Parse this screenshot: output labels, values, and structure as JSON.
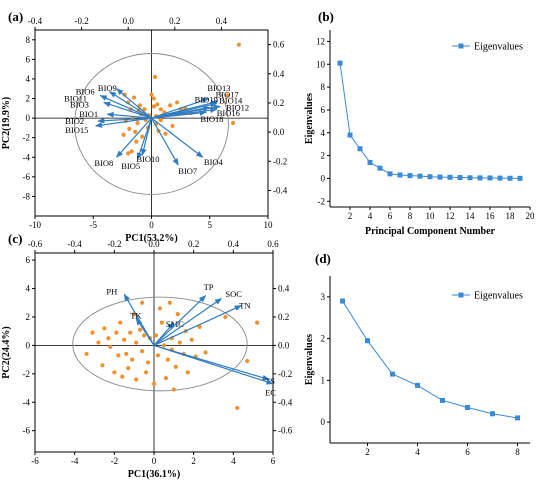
{
  "panel_labels": [
    "(a)",
    "(b)",
    "(c)",
    "(d)"
  ],
  "colors": {
    "point": "#f0912d",
    "vector": "#2f7cc2",
    "line": "#3a8ad6",
    "axis": "#000000",
    "ellipse": "#888888"
  },
  "chart_data": [
    {
      "id": "a",
      "type": "scatter",
      "xlabel": "PC1(53.2%)",
      "ylabel": "PC2(19.9%)",
      "xlim": [
        -10,
        10
      ],
      "ylim": [
        -10,
        9
      ],
      "xticks": [
        "-10",
        "-5",
        "0",
        "5",
        "10"
      ],
      "xticks_v": [
        -10,
        -5,
        0,
        5,
        10
      ],
      "yticks": [
        "-8",
        "-6",
        "-4",
        "-2",
        "0",
        "2",
        "4",
        "6",
        "8"
      ],
      "yticks_v": [
        -8,
        -6,
        -4,
        -2,
        0,
        2,
        4,
        6,
        8
      ],
      "top_lim": [
        -0.4,
        0.6
      ],
      "top_ticks": [
        "-0.4",
        "-0.2",
        "0.0",
        "0.2",
        "0.4"
      ],
      "top_ticks_v": [
        -0.4,
        -0.2,
        0.0,
        0.2,
        0.4
      ],
      "right_lim": [
        -0.575,
        0.7
      ],
      "right_ticks": [
        "-0.4",
        "-0.2",
        "0.0",
        "0.2",
        "0.4",
        "0.6"
      ],
      "right_ticks_v": [
        -0.4,
        -0.2,
        0.0,
        0.2,
        0.4,
        0.6
      ],
      "ellipse": {
        "cx": 0,
        "cy": -0.6,
        "rx": 6.6,
        "ry": 7.2
      },
      "points": [
        [
          -2.3,
          2.4
        ],
        [
          -2.0,
          1.6
        ],
        [
          -1.5,
          2.1
        ],
        [
          -1.8,
          0.9
        ],
        [
          -1.1,
          0.8
        ],
        [
          -0.9,
          0.4
        ],
        [
          -1.6,
          0.0
        ],
        [
          -1.2,
          -0.5
        ],
        [
          -1.9,
          -1.1
        ],
        [
          -2.2,
          -0.3
        ],
        [
          -1.4,
          -1.4
        ],
        [
          -0.8,
          -1.9
        ],
        [
          -1.3,
          -2.4
        ],
        [
          -1.7,
          -3.4
        ],
        [
          -2.0,
          -3.6
        ],
        [
          -2.4,
          -1.7
        ],
        [
          -0.5,
          -0.2
        ],
        [
          -0.2,
          0.3
        ],
        [
          0.2,
          1.2
        ],
        [
          0.5,
          1.4
        ],
        [
          0.8,
          0.9
        ],
        [
          1.1,
          0.6
        ],
        [
          0.4,
          0.2
        ],
        [
          0.8,
          -0.2
        ],
        [
          1.6,
          1.3
        ],
        [
          2.2,
          1.6
        ],
        [
          2.9,
          1.0
        ],
        [
          3.4,
          0.5
        ],
        [
          0.4,
          -0.6
        ],
        [
          0.6,
          -1.3
        ],
        [
          1.2,
          -1.6
        ],
        [
          0.0,
          2.4
        ],
        [
          0.3,
          4.2
        ],
        [
          0.2,
          2.0
        ],
        [
          -0.3,
          -1.0
        ],
        [
          -0.6,
          0.9
        ],
        [
          -1.0,
          1.3
        ],
        [
          2.5,
          0.9
        ],
        [
          1.8,
          -0.8
        ],
        [
          7.5,
          7.5
        ],
        [
          6.5,
          2.3
        ],
        [
          7.0,
          -0.5
        ]
      ],
      "vectors": [
        {
          "label": "BIO6",
          "x": -3.6,
          "y": 2.7,
          "lx": -6.5,
          "ly": 2.7
        },
        {
          "label": "BIO9",
          "x": -3.0,
          "y": 3.0,
          "lx": -4.6,
          "ly": 3.1
        },
        {
          "label": "BIO11",
          "x": -4.4,
          "y": 2.3,
          "lx": -7.5,
          "ly": 2.0
        },
        {
          "label": "BIO3",
          "x": -4.1,
          "y": 1.6,
          "lx": -7.0,
          "ly": 1.4
        },
        {
          "label": "BIO1",
          "x": -3.8,
          "y": 0.4,
          "lx": -6.2,
          "ly": 0.4
        },
        {
          "label": "BIO2",
          "x": -4.6,
          "y": -0.3,
          "lx": -7.4,
          "ly": -0.3
        },
        {
          "label": "BIO15",
          "x": -4.8,
          "y": -0.8,
          "lx": -7.4,
          "ly": -1.2
        },
        {
          "label": "BIO8",
          "x": -3.0,
          "y": -4.0,
          "lx": -4.9,
          "ly": -4.6
        },
        {
          "label": "BIO5",
          "x": -1.2,
          "y": -4.2,
          "lx": -2.6,
          "ly": -4.9
        },
        {
          "label": "BIO10",
          "x": -0.8,
          "y": -3.8,
          "lx": -1.3,
          "ly": -4.2
        },
        {
          "label": "BIO7",
          "x": 2.3,
          "y": -4.8,
          "lx": 2.3,
          "ly": -5.4
        },
        {
          "label": "BIO4",
          "x": 4.4,
          "y": -4.0,
          "lx": 4.5,
          "ly": -4.5
        },
        {
          "label": "BIO13",
          "x": 4.9,
          "y": 2.0,
          "lx": 4.8,
          "ly": 3.1
        },
        {
          "label": "BIO17",
          "x": 5.7,
          "y": 1.7,
          "lx": 5.5,
          "ly": 2.4
        },
        {
          "label": "BIO19",
          "x": 5.0,
          "y": 1.1,
          "lx": 3.7,
          "ly": 1.9
        },
        {
          "label": "BIO14",
          "x": 5.6,
          "y": 1.5,
          "lx": 5.8,
          "ly": 1.8
        },
        {
          "label": "BIO12",
          "x": 5.9,
          "y": 1.2,
          "lx": 6.4,
          "ly": 1.1
        },
        {
          "label": "BIO16",
          "x": 5.6,
          "y": 0.9,
          "lx": 5.6,
          "ly": 0.5
        },
        {
          "label": "BIO18",
          "x": 4.7,
          "y": 0.6,
          "lx": 4.2,
          "ly": -0.1
        }
      ]
    },
    {
      "id": "b",
      "type": "line",
      "xlabel": "Principal Component Number",
      "ylabel": "Eigenvalues",
      "xlim": [
        0,
        20
      ],
      "ylim": [
        -2.5,
        13
      ],
      "xticks": [
        "2",
        "4",
        "6",
        "8",
        "10",
        "12",
        "14",
        "16",
        "18",
        "20"
      ],
      "xticks_v": [
        2,
        4,
        6,
        8,
        10,
        12,
        14,
        16,
        18,
        20
      ],
      "yticks": [
        "-2",
        "0",
        "2",
        "4",
        "6",
        "8",
        "10",
        "12"
      ],
      "yticks_v": [
        -2,
        0,
        2,
        4,
        6,
        8,
        10,
        12
      ],
      "series": [
        {
          "name": "Eigenvalues",
          "x": [
            1,
            2,
            3,
            4,
            5,
            6,
            7,
            8,
            9,
            10,
            11,
            12,
            13,
            14,
            15,
            16,
            17,
            18,
            19
          ],
          "values": [
            10.1,
            3.8,
            2.6,
            1.4,
            0.9,
            0.4,
            0.3,
            0.25,
            0.2,
            0.15,
            0.12,
            0.1,
            0.08,
            0.06,
            0.05,
            0.04,
            0.03,
            0.02,
            0.01
          ]
        }
      ]
    },
    {
      "id": "c",
      "type": "scatter",
      "xlabel": "PC1(36.1%)",
      "ylabel": "PC2(24.4%)",
      "xlim": [
        -6,
        6
      ],
      "ylim": [
        -7.5,
        6.5
      ],
      "xticks": [
        "-6",
        "-4",
        "-2",
        "0",
        "2",
        "4",
        "6"
      ],
      "xticks_v": [
        -6,
        -4,
        -2,
        0,
        2,
        4,
        6
      ],
      "yticks": [
        "-6",
        "-4",
        "-2",
        "0",
        "2",
        "4",
        "6"
      ],
      "yticks_v": [
        -6,
        -4,
        -2,
        0,
        2,
        4,
        6
      ],
      "top_lim": [
        -0.6,
        0.6
      ],
      "top_ticks": [
        "-0.6",
        "-0.4",
        "-0.2",
        "0.0",
        "0.2",
        "0.4",
        "0.6"
      ],
      "top_ticks_v": [
        -0.6,
        -0.4,
        -0.2,
        0.0,
        0.2,
        0.4,
        0.6
      ],
      "right_lim": [
        -0.75,
        0.65
      ],
      "right_ticks": [
        "-0.6",
        "-0.4",
        "-0.2",
        "0.0",
        "0.2",
        "0.4"
      ],
      "right_ticks_v": [
        -0.6,
        -0.4,
        -0.2,
        0.0,
        0.2,
        0.4
      ],
      "ellipse": {
        "cx": 0.3,
        "cy": 0.1,
        "rx": 4.4,
        "ry": 3.3
      },
      "points": [
        [
          -3.1,
          0.9
        ],
        [
          -2.5,
          1.2
        ],
        [
          -2.2,
          -0.1
        ],
        [
          -1.9,
          0.9
        ],
        [
          -1.8,
          -0.7
        ],
        [
          -1.5,
          0.4
        ],
        [
          -1.4,
          -0.6
        ],
        [
          -1.2,
          0.9
        ],
        [
          -1.1,
          -1.0
        ],
        [
          -0.9,
          0.2
        ],
        [
          -0.7,
          1.1
        ],
        [
          -0.6,
          -0.4
        ],
        [
          -0.5,
          0.7
        ],
        [
          -0.3,
          -1.2
        ],
        [
          -0.2,
          0.5
        ],
        [
          0.1,
          0.7
        ],
        [
          0.2,
          -0.7
        ],
        [
          0.4,
          1.6
        ],
        [
          0.5,
          0.0
        ],
        [
          0.7,
          -1.0
        ],
        [
          0.9,
          0.5
        ],
        [
          1.1,
          -1.5
        ],
        [
          1.3,
          0.2
        ],
        [
          1.5,
          -0.6
        ],
        [
          1.7,
          -1.9
        ],
        [
          1.9,
          0.4
        ],
        [
          2.1,
          -0.8
        ],
        [
          2.3,
          1.3
        ],
        [
          -2.6,
          -1.4
        ],
        [
          -2.0,
          -1.9
        ],
        [
          -1.6,
          -2.2
        ],
        [
          -1.3,
          -1.6
        ],
        [
          -0.9,
          -2.4
        ],
        [
          -0.4,
          -1.9
        ],
        [
          0.0,
          -2.7
        ],
        [
          0.6,
          -2.3
        ],
        [
          1.0,
          -3.1
        ],
        [
          -3.4,
          -0.6
        ],
        [
          -2.8,
          0.2
        ],
        [
          -1.0,
          2.2
        ],
        [
          -0.6,
          3.0
        ],
        [
          0.3,
          2.6
        ],
        [
          0.8,
          3.0
        ],
        [
          1.2,
          2.2
        ],
        [
          3.6,
          2.0
        ],
        [
          5.2,
          1.6
        ],
        [
          4.7,
          -1.1
        ],
        [
          4.2,
          -4.4
        ],
        [
          2.6,
          -0.5
        ],
        [
          -2.3,
          0.5
        ],
        [
          -1.7,
          1.6
        ],
        [
          0.9,
          -0.3
        ],
        [
          1.6,
          1.0
        ]
      ],
      "vectors": [
        {
          "label": "PH",
          "x": -1.5,
          "y": 3.6,
          "lx": -2.4,
          "ly": 3.8
        },
        {
          "label": "TK",
          "x": -0.9,
          "y": 1.9,
          "lx": -1.2,
          "ly": 2.1
        },
        {
          "label": "SMC",
          "x": 1.0,
          "y": 1.6,
          "lx": 0.6,
          "ly": 1.5
        },
        {
          "label": "TP",
          "x": 2.6,
          "y": 3.5,
          "lx": 2.5,
          "ly": 4.1
        },
        {
          "label": "SOC",
          "x": 3.4,
          "y": 3.3,
          "lx": 3.6,
          "ly": 3.6
        },
        {
          "label": "TN",
          "x": 4.4,
          "y": 2.8,
          "lx": 4.3,
          "ly": 2.8
        },
        {
          "label": "TS",
          "x": 5.8,
          "y": -2.4,
          "lx": 5.6,
          "ly": -2.5
        },
        {
          "label": "EC",
          "x": 6.0,
          "y": -2.7,
          "lx": 5.6,
          "ly": -3.3
        }
      ]
    },
    {
      "id": "d",
      "type": "line",
      "xlabel": "",
      "ylabel": "Eigenvalues",
      "xlim": [
        0.5,
        8.5
      ],
      "ylim": [
        -0.5,
        3.5
      ],
      "xticks": [
        "2",
        "4",
        "6",
        "8"
      ],
      "xticks_v": [
        2,
        4,
        6,
        8
      ],
      "yticks": [
        "0",
        "1",
        "2",
        "3"
      ],
      "yticks_v": [
        0,
        1,
        2,
        3
      ],
      "series": [
        {
          "name": "Eigenvalues",
          "x": [
            1,
            2,
            3,
            4,
            5,
            6,
            7,
            8
          ],
          "values": [
            2.9,
            1.95,
            1.15,
            0.88,
            0.52,
            0.35,
            0.2,
            0.1
          ]
        }
      ]
    }
  ]
}
